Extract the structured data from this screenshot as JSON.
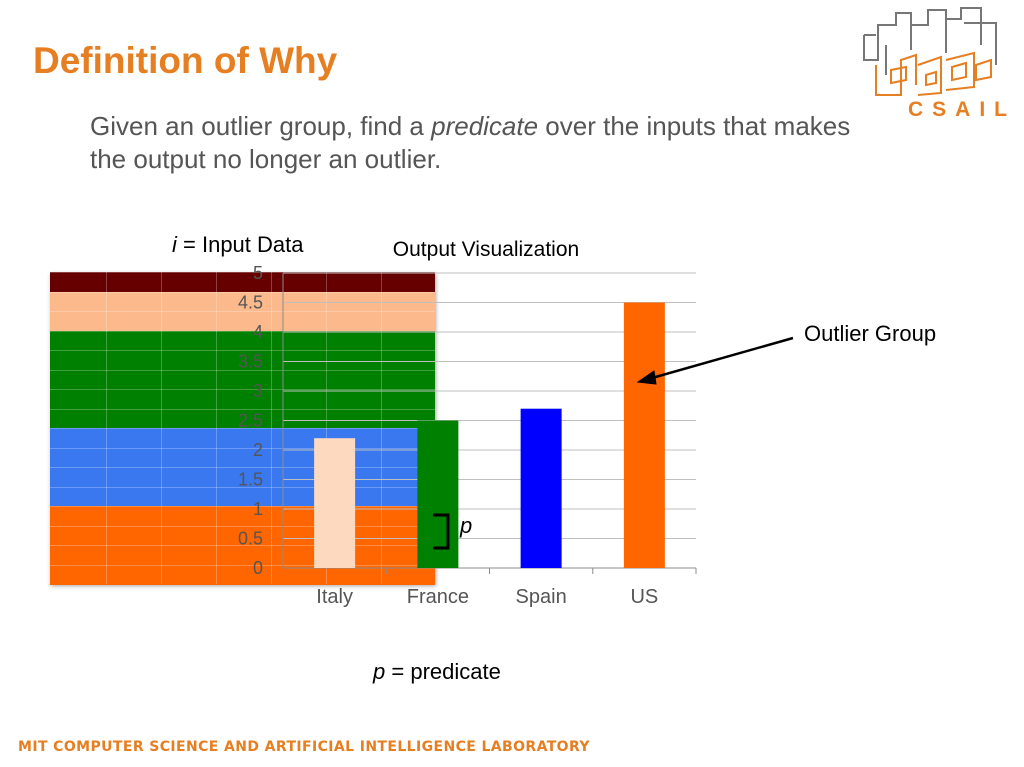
{
  "slide": {
    "title": "Definition of Why",
    "subtitle_pre": "Given an outlier group, find a ",
    "subtitle_em": "predicate",
    "subtitle_post": " over the inputs that makes the output no longer an outlier.",
    "logo_text": "CSAIL",
    "input_label_var": "i",
    "input_label_eq": " = ",
    "input_label_text": "Input Data",
    "outlier_label": "Outlier Group",
    "p_marker": "p",
    "predicate_var": "p",
    "predicate_eq": " = ",
    "predicate_text": "predicate",
    "footer": "MIT COMPUTER SCIENCE AND ARTIFICIAL INTELLIGENCE LABORATORY"
  },
  "colors": {
    "accent": "#e67e22",
    "subtitle": "#555555",
    "grid_rows": [
      "#660000",
      "#fbb98c",
      "#fbb98c",
      "#008000",
      "#008000",
      "#008000",
      "#008000",
      "#008000",
      "#3a78f0",
      "#3a78f0",
      "#3a78f0",
      "#3a78f0",
      "#ff6600",
      "#ff6600",
      "#ff6600",
      "#ff6600"
    ]
  },
  "chart_data": {
    "type": "bar",
    "title": "Output Visualization",
    "categories": [
      "Italy",
      "France",
      "Spain",
      "US"
    ],
    "values": [
      2.2,
      2.5,
      2.7,
      4.5
    ],
    "colors": [
      "#fdd9c0",
      "#008000",
      "#0000ff",
      "#ff6600"
    ],
    "ylim": [
      0,
      5
    ],
    "yticks": [
      "0",
      "0.5",
      "1",
      "1.5",
      "2",
      "2.5",
      "3",
      "3.5",
      "4",
      "4.5",
      "5"
    ],
    "grid": true,
    "xlabel": "",
    "ylabel": ""
  }
}
